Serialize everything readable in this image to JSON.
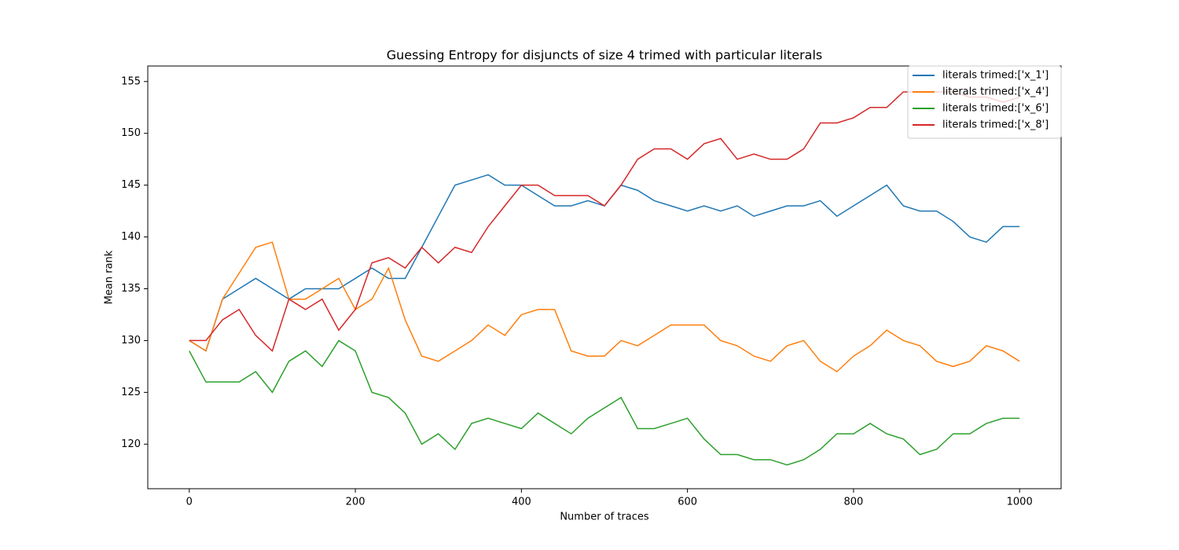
{
  "chart_data": {
    "type": "line",
    "title": "Guessing Entropy for disjuncts of size 4 trimed with particular literals",
    "x_label": "Number of traces",
    "y_label": "Mean rank",
    "x": [
      0,
      20,
      40,
      60,
      80,
      100,
      120,
      140,
      160,
      180,
      200,
      220,
      240,
      260,
      280,
      300,
      320,
      340,
      360,
      380,
      400,
      420,
      440,
      460,
      480,
      500,
      520,
      540,
      560,
      580,
      600,
      620,
      640,
      660,
      680,
      700,
      720,
      740,
      760,
      780,
      800,
      820,
      840,
      860,
      880,
      900,
      920,
      940,
      960,
      980,
      1000
    ],
    "series": [
      {
        "name": "literals trimed:['x_1']",
        "color": "#1f77b4",
        "values": [
          130,
          129,
          134,
          135,
          136,
          135,
          134,
          135,
          135,
          135,
          136,
          137,
          136,
          136,
          139,
          142,
          145,
          145.5,
          146,
          145,
          145,
          144,
          143,
          143,
          143.5,
          143,
          145,
          144.5,
          143.5,
          143,
          142.5,
          143,
          142.5,
          143,
          142,
          142.5,
          143,
          143,
          143.5,
          142,
          143,
          144,
          145,
          143,
          142.5,
          142.5,
          141.5,
          140,
          139.5,
          141,
          141
        ]
      },
      {
        "name": "literals trimed:['x_4']",
        "color": "#ff7f0e",
        "values": [
          130,
          129,
          134,
          136.5,
          139,
          139.5,
          134,
          134,
          135,
          136,
          133,
          134,
          137,
          132,
          128.5,
          128,
          129,
          130,
          131.5,
          130.5,
          132.5,
          133,
          133,
          129,
          128.5,
          128.5,
          130,
          129.5,
          130.5,
          131.5,
          131.5,
          131.5,
          130,
          129.5,
          128.5,
          128,
          129.5,
          130,
          128,
          127,
          128.5,
          129.5,
          131,
          130,
          129.5,
          128,
          127.5,
          128,
          129.5,
          129,
          128
        ]
      },
      {
        "name": "literals trimed:['x_6']",
        "color": "#2ca02c",
        "values": [
          129,
          126,
          126,
          126,
          127,
          125,
          128,
          129,
          127.5,
          130,
          129,
          125,
          124.5,
          123,
          120,
          121,
          119.5,
          122,
          122.5,
          122,
          121.5,
          123,
          122,
          121,
          122.5,
          123.5,
          124.5,
          121.5,
          121.5,
          122,
          122.5,
          120.5,
          119,
          119,
          118.5,
          118.5,
          118,
          118.5,
          119.5,
          121,
          121,
          122,
          121,
          120.5,
          119,
          119.5,
          121,
          121,
          122,
          122.5,
          122.5
        ]
      },
      {
        "name": "literals trimed:['x_8']",
        "color": "#d62728",
        "values": [
          130,
          130,
          132,
          133,
          130.5,
          129,
          134,
          133,
          134,
          131,
          133,
          137.5,
          138,
          137,
          139,
          137.5,
          139,
          138.5,
          141,
          143,
          145,
          145,
          144,
          144,
          144,
          143,
          145,
          147.5,
          148.5,
          148.5,
          147.5,
          149,
          149.5,
          147.5,
          148,
          147.5,
          147.5,
          148.5,
          151,
          151,
          151.5,
          152.5,
          152.5,
          154,
          154,
          154,
          154,
          153.5,
          153.5,
          153,
          153.5
        ]
      }
    ],
    "xlim": [
      -50,
      1050
    ],
    "ylim": [
      115.7,
      156.5
    ],
    "xticks": [
      0,
      200,
      400,
      600,
      800,
      1000
    ],
    "yticks": [
      120,
      125,
      130,
      135,
      140,
      145,
      150,
      155
    ],
    "legend": "upper right"
  }
}
